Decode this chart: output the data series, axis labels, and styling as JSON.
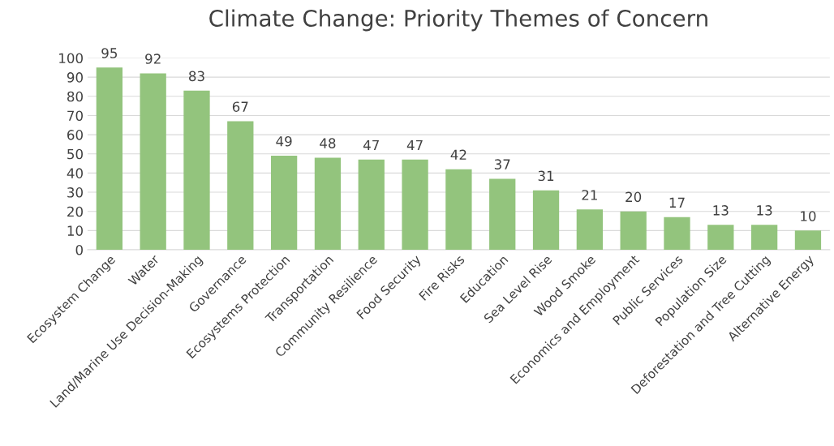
{
  "chart_data": {
    "type": "bar",
    "title": "Climate Change: Priority Themes of Concern",
    "categories": [
      "Ecosystem Change",
      "Water",
      "Land/Marine Use Decision-Making",
      "Governance",
      "Ecosystems Protection",
      "Transportation",
      "Community Resilience",
      "Food Security",
      "Fire Risks",
      "Education",
      "Sea Level Rise",
      "Wood Smoke",
      "Economics and Employment",
      "Public Services",
      "Population Size",
      "Deforestation and Tree Cutting",
      "Alternative Energy"
    ],
    "values": [
      95,
      92,
      83,
      67,
      49,
      48,
      47,
      47,
      42,
      37,
      31,
      21,
      20,
      17,
      13,
      13,
      10
    ],
    "color": "#93c47d",
    "ylim": [
      0,
      100
    ],
    "yticks": [
      0,
      10,
      20,
      30,
      40,
      50,
      60,
      70,
      80,
      90,
      100
    ],
    "grid": "y",
    "data_labels": true
  }
}
